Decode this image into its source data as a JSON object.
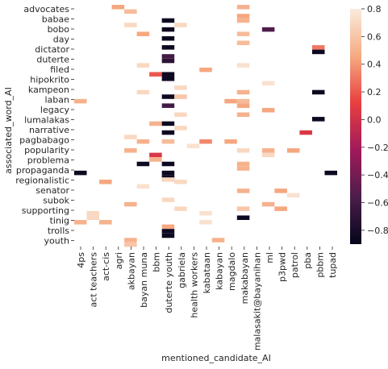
{
  "chart_data": {
    "type": "heatmap",
    "xlabel": "mentioned_candidate_AI",
    "ylabel": "associated_word_AI",
    "x_tick_labels": [
      "4ps",
      "act teachers",
      "act-cis",
      "agri",
      "akbayan",
      "bayan muna",
      "bbm",
      "duterte youth",
      "gabriela",
      "health workers",
      "kabataan",
      "kabayan",
      "magdalo",
      "makabayan",
      "malasakit@bayanihan",
      "ml",
      "p3pwd",
      "patrol",
      "pba",
      "pbbm",
      "tupad"
    ],
    "y_tick_labels": [
      "advocates",
      "babae",
      "bobo",
      "day",
      "dictator",
      "duterte",
      "filed",
      "hipokrito",
      "kampeon",
      "laban",
      "legacy",
      "lumalakas",
      "narrative",
      "pagbabago",
      "popularity",
      "problema",
      "propaganda",
      "regionalistic",
      "senator",
      "subok",
      "supporting",
      "tinig",
      "trolls",
      "youth"
    ],
    "colorbar": {
      "vmin": -0.9,
      "vmax": 0.8,
      "ticks": [
        0.8,
        0.6,
        0.4,
        0.2,
        0.0,
        -0.2,
        -0.4,
        -0.6,
        -0.8
      ],
      "tick_labels": [
        "0.8",
        "0.6",
        "0.4",
        "0.2",
        "0.0",
        "−0.2",
        "−0.4",
        "−0.6",
        "−0.8"
      ]
    },
    "n_columns": 21,
    "n_rows": 46,
    "cells": [
      [
        3,
        0,
        0.45
      ],
      [
        4,
        1,
        0.55
      ],
      [
        13,
        0,
        0.5
      ],
      [
        13,
        2,
        0.45
      ],
      [
        13,
        3,
        0.5
      ],
      [
        7,
        3,
        -0.85
      ],
      [
        4,
        4,
        0.7
      ],
      [
        8,
        4,
        0.7
      ],
      [
        7,
        5,
        -0.85
      ],
      [
        15,
        5,
        -0.55
      ],
      [
        5,
        6,
        0.45
      ],
      [
        13,
        6,
        0.55
      ],
      [
        7,
        7,
        -0.85
      ],
      [
        13,
        8,
        0.55
      ],
      [
        7,
        9,
        -0.85
      ],
      [
        19,
        9,
        0.3
      ],
      [
        19,
        10,
        -0.85
      ],
      [
        7,
        11,
        -0.6
      ],
      [
        7,
        12,
        -0.7
      ],
      [
        5,
        13,
        0.7
      ],
      [
        13,
        13,
        0.75
      ],
      [
        10,
        14,
        0.45
      ],
      [
        6,
        15,
        0.2
      ],
      [
        7,
        15,
        -0.85
      ],
      [
        7,
        16,
        -0.85
      ],
      [
        15,
        17,
        0.75
      ],
      [
        8,
        18,
        0.7
      ],
      [
        5,
        19,
        0.7
      ],
      [
        19,
        19,
        -0.85
      ],
      [
        13,
        19,
        0.5
      ],
      [
        7,
        20,
        -0.85
      ],
      [
        8,
        20,
        0.6
      ],
      [
        0,
        21,
        0.5
      ],
      [
        13,
        21,
        0.55
      ],
      [
        12,
        21,
        0.45
      ],
      [
        13,
        22,
        0.45
      ],
      [
        7,
        22,
        -0.6
      ],
      [
        15,
        23,
        0.45
      ],
      [
        13,
        24,
        0.5
      ],
      [
        8,
        24,
        0.7
      ],
      [
        19,
        25,
        -0.85
      ],
      [
        6,
        26,
        0.5
      ],
      [
        7,
        26,
        -0.85
      ],
      [
        8,
        27,
        0.7
      ],
      [
        7,
        28,
        -0.85
      ],
      [
        18,
        28,
        0.05
      ],
      [
        4,
        29,
        0.7
      ],
      [
        5,
        30,
        0.5
      ],
      [
        7,
        30,
        0.55
      ],
      [
        10,
        30,
        0.35
      ],
      [
        12,
        30,
        0.45
      ],
      [
        9,
        31,
        0.75
      ],
      [
        4,
        32,
        0.5
      ],
      [
        13,
        32,
        0.7
      ],
      [
        15,
        32,
        0.5
      ],
      [
        17,
        32,
        0.45
      ],
      [
        15,
        33,
        0.7
      ],
      [
        6,
        33,
        0.05
      ],
      [
        6,
        34,
        0.5
      ],
      [
        5,
        35,
        -0.85
      ],
      [
        7,
        35,
        -0.85
      ],
      [
        13,
        35,
        0.5
      ],
      [
        13,
        36,
        0.5
      ],
      [
        0,
        37,
        -0.85
      ],
      [
        7,
        37,
        -0.85
      ],
      [
        20,
        37,
        -0.85
      ],
      [
        7,
        38,
        -0.85
      ],
      [
        7,
        38.5,
        0.7
      ],
      [
        2,
        39,
        0.45
      ],
      [
        8,
        39,
        0.7
      ],
      [
        5,
        40,
        0.75
      ],
      [
        16,
        41,
        0.45
      ],
      [
        13,
        41,
        0.5
      ],
      [
        17,
        42,
        0.75
      ],
      [
        7,
        43,
        0.7
      ],
      [
        4,
        44,
        0.5
      ],
      [
        15,
        44,
        0.5
      ],
      [
        13,
        45,
        0.6
      ],
      [
        8,
        45,
        0.7
      ],
      [
        16,
        45,
        0.45
      ],
      [
        1,
        46,
        0.7
      ],
      [
        10,
        46,
        0.75
      ],
      [
        1,
        47,
        0.7
      ],
      [
        13,
        47,
        -0.85
      ],
      [
        0,
        48,
        0.5
      ],
      [
        2,
        48,
        0.5
      ],
      [
        10,
        48,
        0.75
      ],
      [
        7,
        49,
        0.45
      ],
      [
        7,
        50,
        -0.85
      ],
      [
        7,
        51,
        -0.85
      ],
      [
        4,
        52,
        0.5
      ],
      [
        11,
        52,
        0.5
      ],
      [
        4,
        53,
        0.6
      ]
    ]
  }
}
